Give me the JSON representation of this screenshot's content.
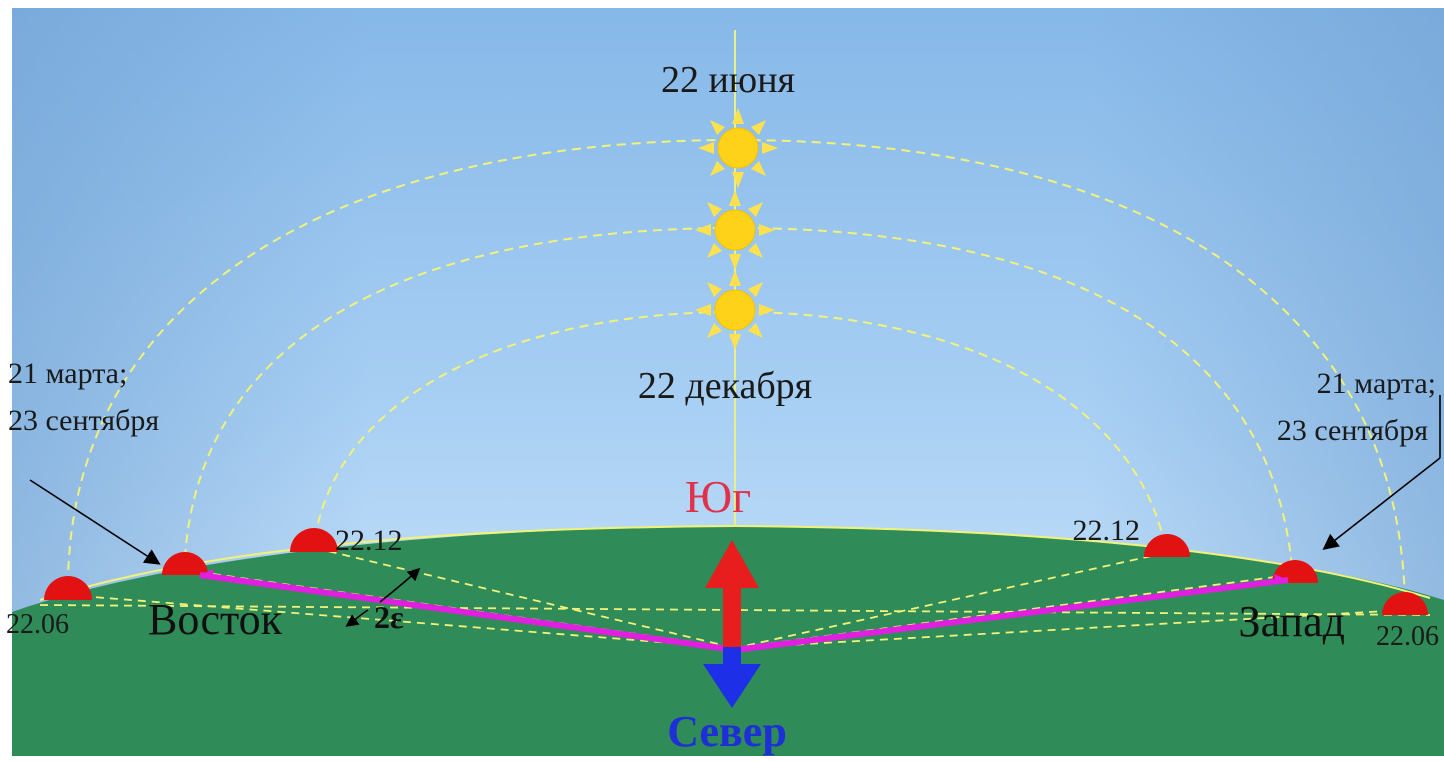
{
  "labels": {
    "june": "22 июня",
    "december": "22 декабря",
    "equinox_left_line1": "21 марта;",
    "equinox_left_line2": "23 сентября",
    "equinox_right_line1": "21 марта;",
    "equinox_right_line2": "23 сентября",
    "dec_left": "22.12",
    "dec_right": "22.12",
    "jun_left": "22.06",
    "jun_right": "22.06",
    "east": "Восток",
    "west": "Запад",
    "south": "Юг",
    "north": "Север",
    "epsilon": "2ε"
  },
  "colors": {
    "sky_top": "#7fb3e6",
    "sky_bottom": "#cfe6fa",
    "ground": "#2e8b57",
    "sun": "#ffd21a",
    "sun_ray": "#ffe14d",
    "path": "#f4f58a",
    "rising_sun": "#e01010",
    "magenta": "#e020e0",
    "south_arrow": "#e81e1e",
    "north_arrow": "#1e2fe8",
    "south_text": "#e0304a",
    "north_text": "#1e2fd8"
  }
}
